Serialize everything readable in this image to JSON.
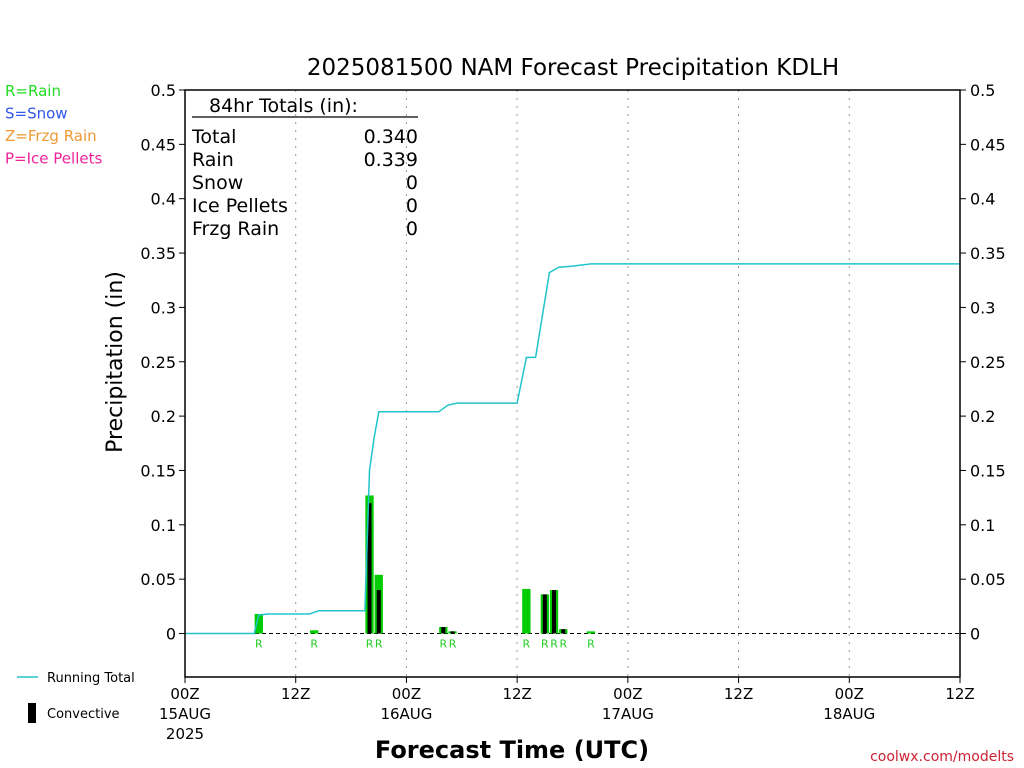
{
  "chart_data": {
    "type": "bar",
    "title": "2025081500 NAM Forecast Precipitation KDLH",
    "xlabel": "Forecast Time (UTC)",
    "ylabel": "Precipitation (in)",
    "ylim": [
      -0.04,
      0.5
    ],
    "xlim_hours": [
      0,
      84
    ],
    "yticks": [
      "0.5",
      "0.45",
      "0.4",
      "0.35",
      "0.3",
      "0.25",
      "0.2",
      "0.15",
      "0.1",
      "0.05",
      "0"
    ],
    "xticks": [
      {
        "hour": 0,
        "label": "00Z",
        "date": "15AUG",
        "year": "2025"
      },
      {
        "hour": 12,
        "label": "12Z",
        "date": "",
        "year": ""
      },
      {
        "hour": 24,
        "label": "00Z",
        "date": "16AUG",
        "year": ""
      },
      {
        "hour": 36,
        "label": "12Z",
        "date": "",
        "year": ""
      },
      {
        "hour": 48,
        "label": "00Z",
        "date": "17AUG",
        "year": ""
      },
      {
        "hour": 60,
        "label": "12Z",
        "date": "",
        "year": ""
      },
      {
        "hour": 72,
        "label": "00Z",
        "date": "18AUG",
        "year": ""
      },
      {
        "hour": 84,
        "label": "12Z",
        "date": "",
        "year": ""
      }
    ],
    "legend_types": [
      {
        "text": "R=Rain",
        "color": "#22dd22"
      },
      {
        "text": "S=Snow",
        "color": "#3355ee"
      },
      {
        "text": "Z=Frzg Rain",
        "color": "#ee9933"
      },
      {
        "text": "P=Ice Pellets",
        "color": "#ee2299"
      }
    ],
    "legend_series": [
      {
        "text": "Running Total",
        "color": "#22c4cc"
      },
      {
        "text": "Convective",
        "color": "#000000"
      }
    ],
    "totals": {
      "header": "84hr Totals (in):",
      "rows": [
        {
          "label": "Total",
          "value": "0.340"
        },
        {
          "label": "Rain",
          "value": "0.339"
        },
        {
          "label": "Snow",
          "value": "0"
        },
        {
          "label": "Ice Pellets",
          "value": "0"
        },
        {
          "label": "Frzg Rain",
          "value": "0"
        }
      ]
    },
    "series": [
      {
        "name": "Precipitation",
        "color": "#00cc00",
        "bars": [
          {
            "hour": 8,
            "value": 0.018,
            "type": "R"
          },
          {
            "hour": 14,
            "value": 0.003,
            "type": "R"
          },
          {
            "hour": 20,
            "value": 0.127,
            "type": "R"
          },
          {
            "hour": 21,
            "value": 0.054,
            "type": "R"
          },
          {
            "hour": 28,
            "value": 0.006,
            "type": "R"
          },
          {
            "hour": 29,
            "value": 0.002,
            "type": "R"
          },
          {
            "hour": 37,
            "value": 0.041,
            "type": "R"
          },
          {
            "hour": 39,
            "value": 0.036,
            "type": "R"
          },
          {
            "hour": 40,
            "value": 0.04,
            "type": "R"
          },
          {
            "hour": 41,
            "value": 0.004,
            "type": "R"
          },
          {
            "hour": 44,
            "value": 0.002,
            "type": "R"
          }
        ]
      },
      {
        "name": "Convective",
        "color": "#000000",
        "bars": [
          {
            "hour": 28,
            "value": 0.006
          },
          {
            "hour": 29,
            "value": 0.002
          },
          {
            "hour": 20,
            "value": 0.12
          },
          {
            "hour": 21,
            "value": 0.04
          },
          {
            "hour": 39,
            "value": 0.036
          },
          {
            "hour": 40,
            "value": 0.04
          },
          {
            "hour": 41,
            "value": 0.004
          }
        ]
      },
      {
        "name": "Running Total",
        "color": "#22c4cc",
        "points": [
          [
            0,
            0
          ],
          [
            7.5,
            0
          ],
          [
            8,
            0.017
          ],
          [
            9,
            0.018
          ],
          [
            11,
            0.018
          ],
          [
            12,
            0.018
          ],
          [
            13.5,
            0.018
          ],
          [
            14.5,
            0.021
          ],
          [
            19.5,
            0.021
          ],
          [
            20,
            0.15
          ],
          [
            20.5,
            0.18
          ],
          [
            21,
            0.204
          ],
          [
            25,
            0.204
          ],
          [
            27.5,
            0.204
          ],
          [
            28.5,
            0.21
          ],
          [
            29.5,
            0.212
          ],
          [
            36,
            0.212
          ],
          [
            37,
            0.254
          ],
          [
            38,
            0.254
          ],
          [
            39.5,
            0.332
          ],
          [
            40.5,
            0.337
          ],
          [
            42,
            0.338
          ],
          [
            44,
            0.34
          ],
          [
            84,
            0.34
          ]
        ]
      }
    ],
    "footer": "coolwx.com/modelts"
  }
}
